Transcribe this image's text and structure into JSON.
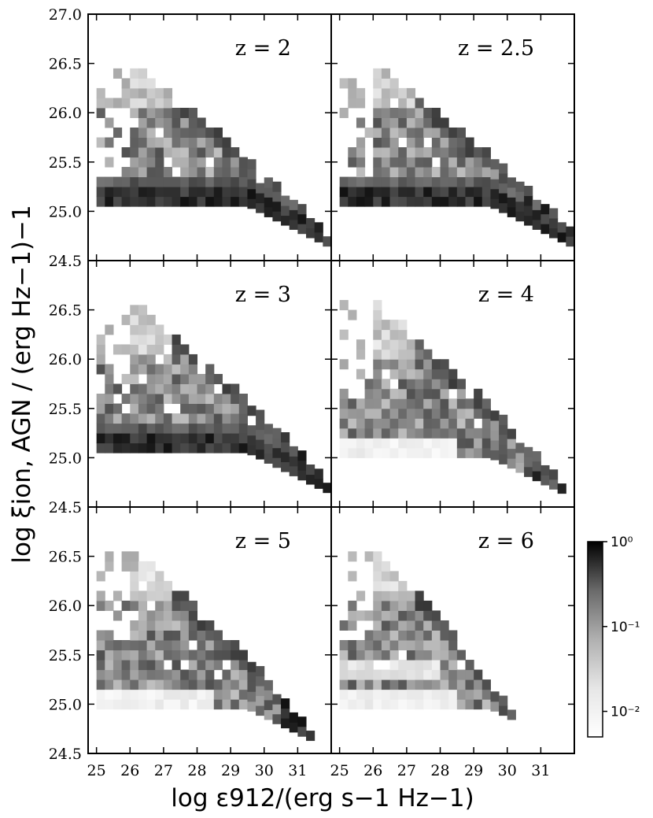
{
  "chart_data": {
    "type": "heatmap",
    "colormap": "Greys",
    "xlabel": "log ε912/(erg s−1 Hz−1)",
    "ylabel": "log ξion, AGN / (erg Hz−1)−1",
    "x_range": [
      24.75,
      32.0
    ],
    "y_range": [
      24.5,
      27.0
    ],
    "x_ticks": [
      "25",
      "26",
      "27",
      "28",
      "29",
      "30",
      "31"
    ],
    "y_ticks": [
      "24.5",
      "25.0",
      "25.5",
      "26.0",
      "26.5",
      "27.0"
    ],
    "colorbar": {
      "scale": "log",
      "range": [
        0.005,
        1.0
      ],
      "ticks": [
        {
          "value": 1.0,
          "label": "10⁰"
        },
        {
          "value": 0.1,
          "label": "10⁻¹"
        },
        {
          "value": 0.01,
          "label": "10⁻²"
        }
      ]
    },
    "panels": [
      {
        "label": "z = 2"
      },
      {
        "label": "z = 2.5"
      },
      {
        "label": "z = 3"
      },
      {
        "label": "z = 4"
      },
      {
        "label": "z = 5"
      },
      {
        "label": "z = 6"
      }
    ]
  }
}
